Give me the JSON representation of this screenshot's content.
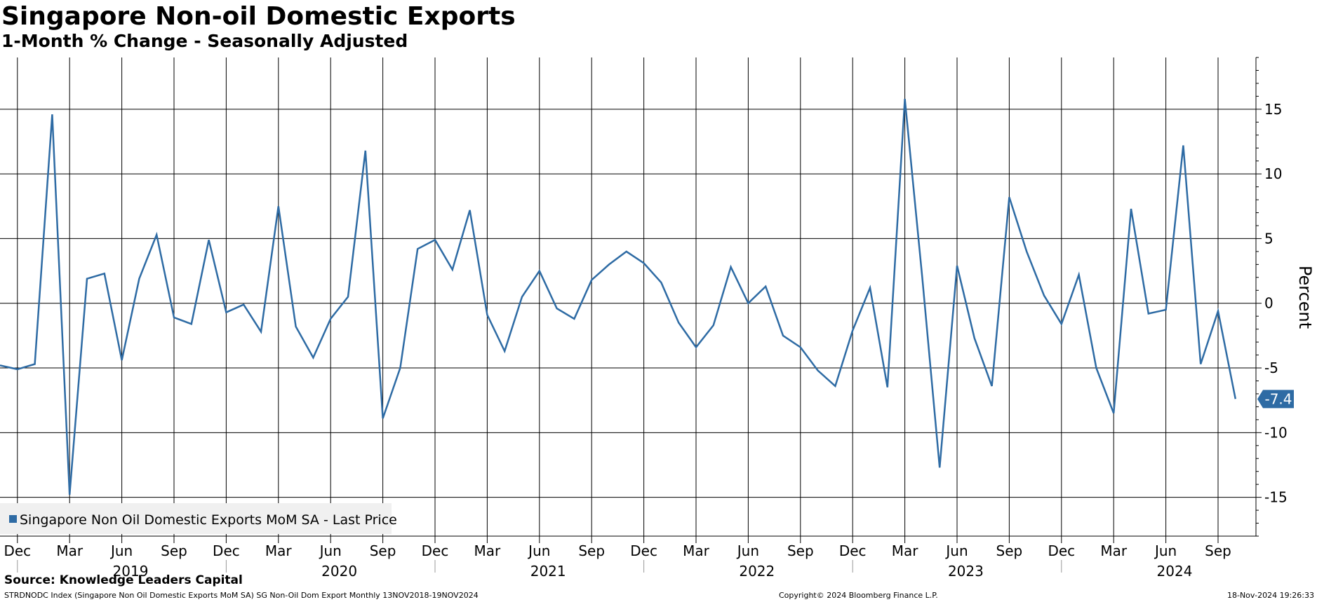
{
  "header": {
    "title": "Singapore Non-oil Domestic Exports",
    "subtitle": "1-Month % Change - Seasonally Adjusted"
  },
  "footer": {
    "source": "Source: Knowledge Leaders Capital",
    "description": "STRDNODC Index (Singapore Non Oil Domestic Exports MoM SA) SG Non-Oil Dom Export  Monthly 13NOV2018-19NOV2024",
    "copyright": "Copyright© 2024 Bloomberg Finance L.P.",
    "timestamp": "18-Nov-2024 19:26:33"
  },
  "colors": {
    "series": "#2e6ba4",
    "grid": "#000000",
    "background": "#ffffff",
    "legend_background": "#f0f0f0"
  },
  "chart_data": {
    "type": "line",
    "ylabel": "Percent",
    "ylim": [
      -18,
      19
    ],
    "xlim": [
      "2018-11",
      "2024-10"
    ],
    "yticks": [
      15,
      10,
      5,
      0,
      -5,
      -10,
      -15
    ],
    "grid": true,
    "legend_position": "bottom-left",
    "month_ticks": [
      "Dec",
      "Mar",
      "Jun",
      "Sep",
      "Dec",
      "Mar",
      "Jun",
      "Sep",
      "Dec",
      "Mar",
      "Jun",
      "Sep",
      "Dec",
      "Mar",
      "Jun",
      "Sep",
      "Dec",
      "Mar",
      "Jun",
      "Sep",
      "Dec",
      "Mar",
      "Jun",
      "Sep"
    ],
    "year_labels": [
      "2019",
      "2020",
      "2021",
      "2022",
      "2023",
      "2024"
    ],
    "last_value_label": "-7.4",
    "series": [
      {
        "name": "Singapore Non Oil Domestic Exports MoM SA - Last Price",
        "x": [
          "2018-11",
          "2018-12",
          "2019-01",
          "2019-02",
          "2019-03",
          "2019-04",
          "2019-05",
          "2019-06",
          "2019-07",
          "2019-08",
          "2019-09",
          "2019-10",
          "2019-11",
          "2019-12",
          "2020-01",
          "2020-02",
          "2020-03",
          "2020-04",
          "2020-05",
          "2020-06",
          "2020-07",
          "2020-08",
          "2020-09",
          "2020-10",
          "2020-11",
          "2020-12",
          "2021-01",
          "2021-02",
          "2021-03",
          "2021-04",
          "2021-05",
          "2021-06",
          "2021-07",
          "2021-08",
          "2021-09",
          "2021-10",
          "2021-11",
          "2021-12",
          "2022-01",
          "2022-02",
          "2022-03",
          "2022-04",
          "2022-05",
          "2022-06",
          "2022-07",
          "2022-08",
          "2022-09",
          "2022-10",
          "2022-11",
          "2022-12",
          "2023-01",
          "2023-02",
          "2023-03",
          "2023-04",
          "2023-05",
          "2023-06",
          "2023-07",
          "2023-08",
          "2023-09",
          "2023-10",
          "2023-11",
          "2023-12",
          "2024-01",
          "2024-02",
          "2024-03",
          "2024-04",
          "2024-05",
          "2024-06",
          "2024-07",
          "2024-08",
          "2024-09",
          "2024-10"
        ],
        "values": [
          -4.8,
          -5.1,
          -4.7,
          14.6,
          -14.8,
          1.9,
          2.3,
          -4.4,
          1.9,
          5.3,
          -1.1,
          -1.6,
          4.9,
          -0.7,
          -0.1,
          -2.2,
          7.5,
          -1.8,
          -4.2,
          -1.2,
          0.5,
          11.8,
          -8.9,
          -5.0,
          4.2,
          4.9,
          2.6,
          7.2,
          -0.9,
          -3.7,
          0.5,
          2.5,
          -0.4,
          -1.2,
          1.8,
          3.0,
          4.0,
          3.1,
          1.6,
          -1.5,
          -3.4,
          -1.7,
          2.8,
          0.0,
          1.3,
          -2.5,
          -3.4,
          -5.2,
          -6.4,
          -2.1,
          1.2,
          -6.5,
          15.8,
          2.0,
          -12.7,
          2.9,
          -2.7,
          -6.4,
          8.2,
          4.0,
          0.6,
          -1.6,
          2.2,
          -5.0,
          -8.5,
          7.3,
          -0.8,
          -0.5,
          12.2,
          -4.7,
          -0.6,
          -7.4
        ]
      }
    ]
  }
}
